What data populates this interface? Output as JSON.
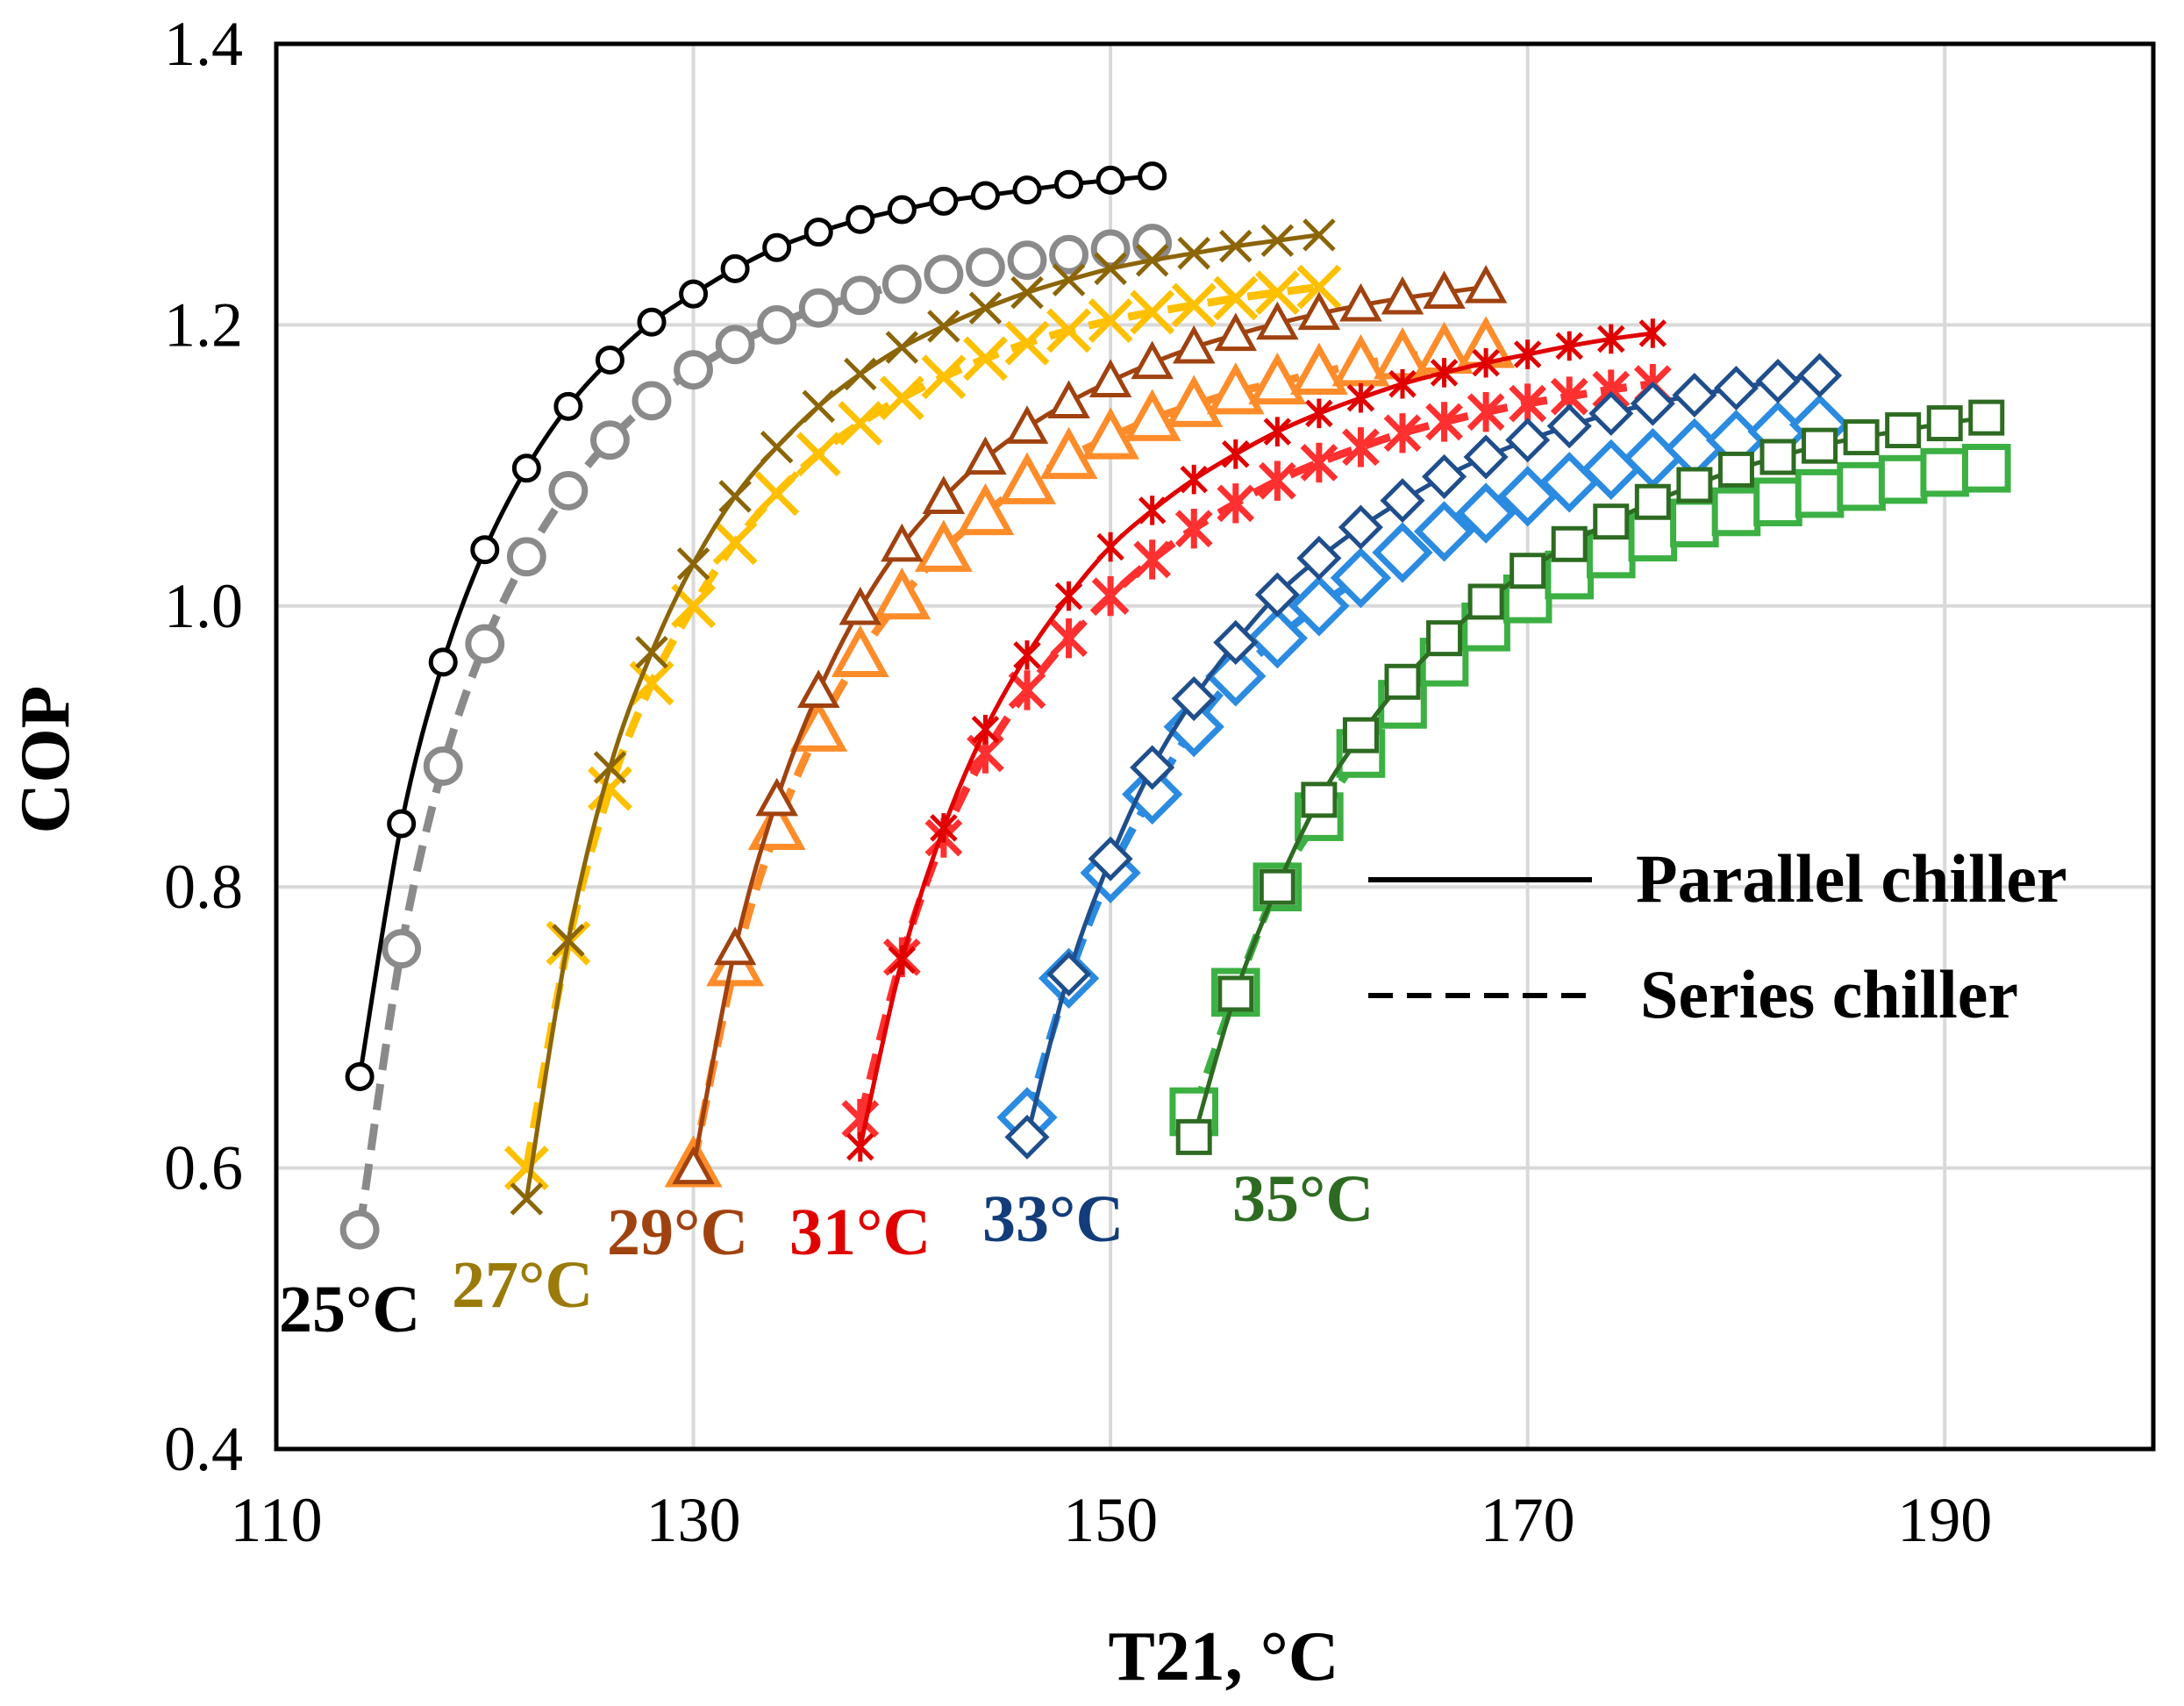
{
  "chart_data": {
    "type": "line",
    "title": "",
    "xlabel": "T21, °C",
    "ylabel": "COP",
    "xlim": [
      110,
      200
    ],
    "ylim": [
      0.4,
      1.4
    ],
    "xticks": [
      "110",
      "130",
      "150",
      "170",
      "190"
    ],
    "yticks": [
      "0.4",
      "0.6",
      "0.8",
      "1.0",
      "1.2",
      "1.4"
    ],
    "grid": true,
    "legend": {
      "placement": "right",
      "entries": [
        {
          "label": "Parallel chiller",
          "style": "solid"
        },
        {
          "label": "Series chiller",
          "style": "dashed"
        }
      ]
    },
    "series": [
      {
        "name": "25°C",
        "label": "25°C",
        "label_color": "#000000",
        "chiller": "Parallel",
        "color": "#000000",
        "marker": "circle",
        "x": [
          114,
          116,
          118,
          120,
          122,
          124,
          126,
          128,
          130,
          132,
          134,
          136,
          138,
          140,
          142,
          144,
          146,
          148,
          150,
          152
        ],
        "y": [
          0.665,
          0.845,
          0.96,
          1.04,
          1.098,
          1.142,
          1.175,
          1.202,
          1.222,
          1.24,
          1.255,
          1.266,
          1.275,
          1.282,
          1.288,
          1.292,
          1.296,
          1.3,
          1.303,
          1.306
        ]
      },
      {
        "name": "25°C",
        "label": "25°C",
        "chiller": "Series",
        "color": "#8a8a8a",
        "marker": "circle",
        "x": [
          114,
          116,
          118,
          120,
          122,
          124,
          126,
          128,
          130,
          132,
          134,
          136,
          138,
          140,
          142,
          144,
          146,
          148,
          150,
          152
        ],
        "y": [
          0.556,
          0.756,
          0.886,
          0.973,
          1.035,
          1.082,
          1.118,
          1.146,
          1.168,
          1.186,
          1.2,
          1.212,
          1.221,
          1.229,
          1.236,
          1.241,
          1.246,
          1.25,
          1.254,
          1.258
        ]
      },
      {
        "name": "27°C",
        "label": "27°C",
        "label_color": "#9a7b0a",
        "chiller": "Parallel",
        "color": "#8b6508",
        "marker": "x",
        "x": [
          122,
          124,
          126,
          128,
          130,
          132,
          134,
          136,
          138,
          140,
          142,
          144,
          146,
          148,
          150,
          152,
          154,
          156,
          158,
          160
        ],
        "y": [
          0.578,
          0.762,
          0.885,
          0.967,
          1.03,
          1.078,
          1.113,
          1.142,
          1.165,
          1.184,
          1.199,
          1.212,
          1.223,
          1.232,
          1.24,
          1.246,
          1.251,
          1.256,
          1.26,
          1.264
        ]
      },
      {
        "name": "27°C",
        "label": "27°C",
        "chiller": "Series",
        "color": "#ffc000",
        "marker": "x",
        "x": [
          122,
          124,
          126,
          128,
          130,
          132,
          134,
          136,
          138,
          140,
          142,
          144,
          146,
          148,
          150,
          152,
          154,
          156,
          158,
          160
        ],
        "y": [
          0.6,
          0.76,
          0.87,
          0.945,
          1.0,
          1.045,
          1.08,
          1.108,
          1.13,
          1.148,
          1.163,
          1.176,
          1.187,
          1.196,
          1.203,
          1.209,
          1.214,
          1.219,
          1.223,
          1.227
        ]
      },
      {
        "name": "29°C",
        "label": "29°C",
        "label_color": "#a0420f",
        "chiller": "Parallel",
        "color": "#a0420f",
        "marker": "triangle",
        "x": [
          130,
          132,
          134,
          136,
          138,
          140,
          142,
          144,
          146,
          148,
          150,
          152,
          154,
          156,
          158,
          160,
          162,
          164,
          166,
          168
        ],
        "y": [
          0.6,
          0.756,
          0.862,
          0.939,
          0.998,
          1.043,
          1.077,
          1.105,
          1.127,
          1.145,
          1.16,
          1.173,
          1.184,
          1.193,
          1.201,
          1.208,
          1.214,
          1.219,
          1.223,
          1.227
        ]
      },
      {
        "name": "29°C",
        "label": "29°C",
        "chiller": "Series",
        "color": "#ff8c2a",
        "marker": "triangle",
        "x": [
          130,
          132,
          134,
          136,
          138,
          140,
          142,
          144,
          146,
          148,
          150,
          152,
          154,
          156,
          158,
          160,
          162,
          164,
          166,
          168
        ],
        "y": [
          0.602,
          0.745,
          0.842,
          0.912,
          0.965,
          1.006,
          1.04,
          1.066,
          1.088,
          1.106,
          1.12,
          1.133,
          1.143,
          1.152,
          1.159,
          1.166,
          1.172,
          1.177,
          1.181,
          1.185
        ]
      },
      {
        "name": "31°C",
        "label": "31°C",
        "label_color": "#e00000",
        "chiller": "Parallel",
        "color": "#e00000",
        "marker": "asterisk",
        "x": [
          138,
          140,
          142,
          144,
          146,
          148,
          150,
          152,
          154,
          156,
          158,
          160,
          162,
          164,
          166,
          168,
          170,
          172,
          174,
          176
        ],
        "y": [
          0.615,
          0.748,
          0.842,
          0.912,
          0.965,
          1.007,
          1.042,
          1.068,
          1.09,
          1.108,
          1.124,
          1.137,
          1.148,
          1.158,
          1.166,
          1.173,
          1.179,
          1.185,
          1.19,
          1.194
        ]
      },
      {
        "name": "31°C",
        "label": "31°C",
        "chiller": "Series",
        "color": "#ff3030",
        "marker": "asterisk",
        "x": [
          138,
          140,
          142,
          144,
          146,
          148,
          150,
          152,
          154,
          156,
          158,
          160,
          162,
          164,
          166,
          168,
          170,
          172,
          174,
          176
        ],
        "y": [
          0.635,
          0.75,
          0.835,
          0.895,
          0.94,
          0.977,
          1.007,
          1.033,
          1.055,
          1.073,
          1.089,
          1.102,
          1.113,
          1.123,
          1.131,
          1.138,
          1.144,
          1.149,
          1.154,
          1.158
        ]
      },
      {
        "name": "33°C",
        "label": "33°C",
        "label_color": "#123d7a",
        "chiller": "Parallel",
        "color": "#1f4e8c",
        "marker": "diamond",
        "x": [
          146,
          148,
          150,
          152,
          154,
          156,
          158,
          160,
          162,
          164,
          166,
          168,
          170,
          172,
          174,
          176,
          178,
          180,
          182,
          184
        ],
        "y": [
          0.622,
          0.738,
          0.82,
          0.885,
          0.934,
          0.974,
          1.008,
          1.034,
          1.056,
          1.075,
          1.092,
          1.106,
          1.118,
          1.128,
          1.137,
          1.144,
          1.15,
          1.155,
          1.16,
          1.164
        ]
      },
      {
        "name": "33°C",
        "label": "33°C",
        "chiller": "Series",
        "color": "#2a8be0",
        "marker": "diamond",
        "x": [
          146,
          148,
          150,
          152,
          154,
          156,
          158,
          160,
          162,
          164,
          166,
          168,
          170,
          172,
          174,
          176,
          178,
          180,
          182,
          184
        ],
        "y": [
          0.636,
          0.735,
          0.81,
          0.866,
          0.914,
          0.95,
          0.977,
          1.0,
          1.02,
          1.038,
          1.053,
          1.066,
          1.078,
          1.088,
          1.097,
          1.105,
          1.112,
          1.118,
          1.124,
          1.129
        ]
      },
      {
        "name": "35°C",
        "label": "35°C",
        "label_color": "#2e6b22",
        "chiller": "Parallel",
        "color": "#2e6b22",
        "marker": "square",
        "x": [
          154,
          156,
          158,
          160,
          162,
          164,
          166,
          168,
          170,
          172,
          174,
          176,
          178,
          180,
          182,
          184,
          186,
          188,
          190,
          192
        ],
        "y": [
          0.622,
          0.724,
          0.8,
          0.862,
          0.908,
          0.946,
          0.977,
          1.003,
          1.025,
          1.044,
          1.06,
          1.074,
          1.086,
          1.097,
          1.106,
          1.114,
          1.12,
          1.125,
          1.13,
          1.134
        ]
      },
      {
        "name": "35°C",
        "label": "35°C",
        "chiller": "Series",
        "color": "#3cb043",
        "marker": "square",
        "x": [
          154,
          156,
          158,
          160,
          162,
          164,
          166,
          168,
          170,
          172,
          174,
          176,
          178,
          180,
          182,
          184,
          186,
          188,
          190,
          192
        ],
        "y": [
          0.64,
          0.725,
          0.8,
          0.85,
          0.895,
          0.93,
          0.96,
          0.985,
          1.005,
          1.022,
          1.037,
          1.049,
          1.059,
          1.067,
          1.074,
          1.08,
          1.085,
          1.09,
          1.095,
          1.098
        ]
      }
    ],
    "series_labels": [
      {
        "text": "25°C",
        "color": "#000000"
      },
      {
        "text": "27°C",
        "color": "#9a7b0a"
      },
      {
        "text": "29°C",
        "color": "#a0420f"
      },
      {
        "text": "31°C",
        "color": "#e00000"
      },
      {
        "text": "33°C",
        "color": "#123d7a"
      },
      {
        "text": "35°C",
        "color": "#2e6b22"
      }
    ]
  }
}
